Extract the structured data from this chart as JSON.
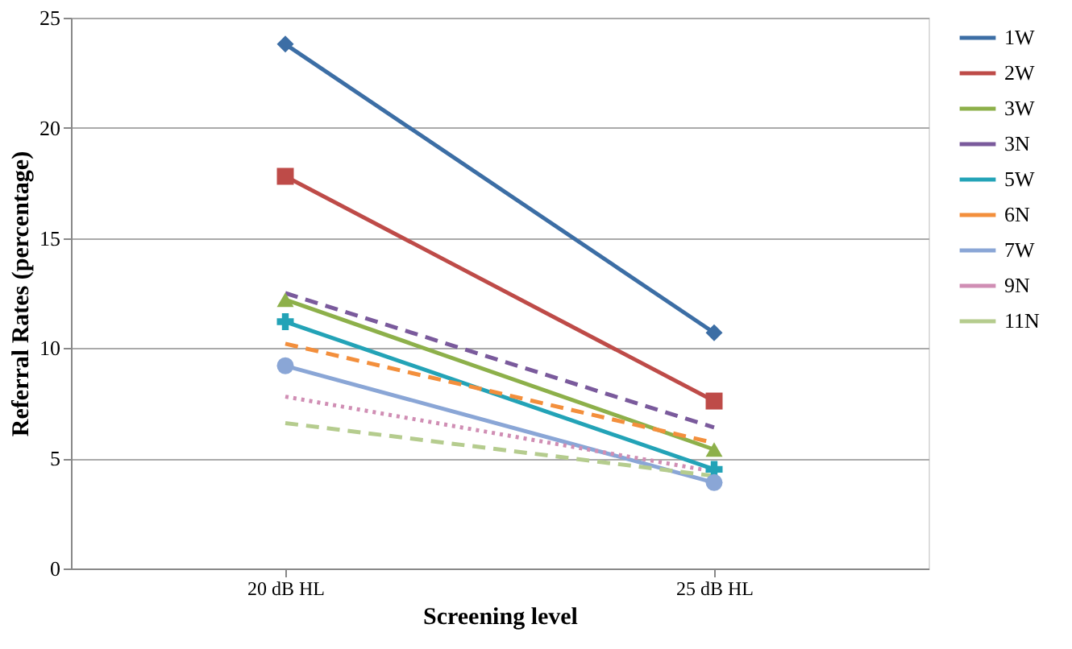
{
  "chart_data": {
    "type": "line",
    "xlabel": "Screening level",
    "ylabel": "Referral Rates (percentage)",
    "categories": [
      "20 dB HL",
      "25 dB HL"
    ],
    "ylim": [
      0,
      25
    ],
    "yticks": [
      0,
      5,
      10,
      15,
      20,
      25
    ],
    "grid": "y",
    "legend": "right",
    "series": [
      {
        "name": "1W",
        "color": "#3c6ea5",
        "values": [
          23.8,
          10.7
        ],
        "marker": "diamond",
        "line_style": "solid"
      },
      {
        "name": "2W",
        "color": "#be4b48",
        "values": [
          17.8,
          7.6
        ],
        "marker": "square",
        "line_style": "solid"
      },
      {
        "name": "3W",
        "color": "#8db04a",
        "values": [
          12.2,
          5.4
        ],
        "marker": "triangle",
        "line_style": "solid"
      },
      {
        "name": "3N",
        "color": "#7a5a9c",
        "values": [
          12.5,
          6.4
        ],
        "marker": "none",
        "line_style": "dashed"
      },
      {
        "name": "5W",
        "color": "#23a3b7",
        "values": [
          11.2,
          4.5
        ],
        "marker": "cross",
        "line_style": "solid"
      },
      {
        "name": "6N",
        "color": "#f38f3c",
        "values": [
          10.2,
          5.7
        ],
        "marker": "none",
        "line_style": "dashed"
      },
      {
        "name": "7W",
        "color": "#8aa6d6",
        "values": [
          9.2,
          3.9
        ],
        "marker": "circle",
        "line_style": "solid"
      },
      {
        "name": "9N",
        "color": "#d08eb4",
        "values": [
          7.8,
          4.4
        ],
        "marker": "none",
        "line_style": "dotted"
      },
      {
        "name": "11N",
        "color": "#b5cc8e",
        "values": [
          6.6,
          4.2
        ],
        "marker": "none",
        "line_style": "dashed"
      }
    ]
  }
}
